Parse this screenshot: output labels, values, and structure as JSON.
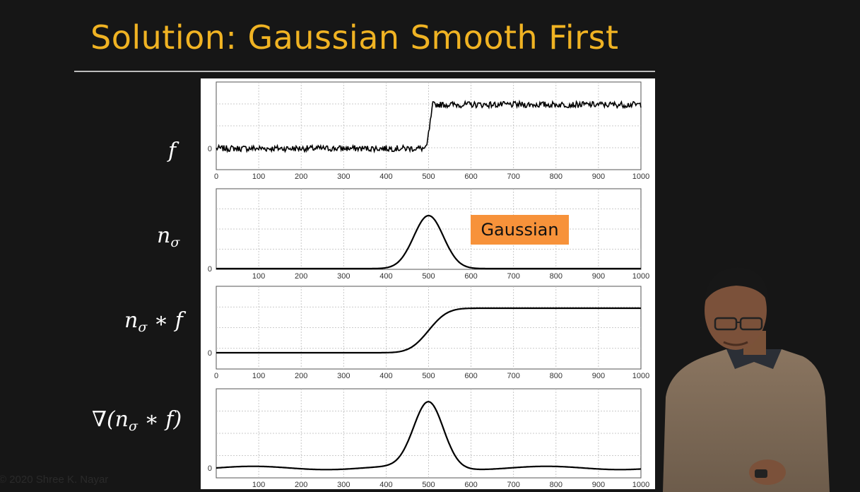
{
  "slide": {
    "title": "Solution: Gaussian Smooth First",
    "copyright": "© 2020 Shree K. Nayar",
    "badge": "Gaussian"
  },
  "labels": {
    "f": "f",
    "n": "n",
    "sigma": "σ",
    "conv_op": " ∗ f",
    "grad_open": "∇(",
    "grad_close": " ∗ f)"
  },
  "colors": {
    "title": "#f0b323",
    "badge": "#f7923a",
    "background": "#161616"
  },
  "chart_data": [
    {
      "type": "line",
      "label": "f",
      "xlim": [
        0,
        1000
      ],
      "x_ticks": [
        0,
        100,
        200,
        300,
        400,
        500,
        600,
        700,
        800,
        900,
        1000
      ],
      "y_ticks": [
        "0"
      ],
      "grid": true,
      "description_points": {
        "x": [
          0,
          495,
          510,
          1000
        ],
        "y": [
          0,
          0,
          1,
          1
        ]
      },
      "noisy": true
    },
    {
      "type": "line",
      "label": "n_sigma",
      "xlim": [
        0,
        1000
      ],
      "x_ticks": [
        100,
        200,
        300,
        400,
        500,
        600,
        700,
        800,
        900,
        1000
      ],
      "y_ticks": [
        "0"
      ],
      "grid": true,
      "gaussian": {
        "center": 500,
        "sigma": 35,
        "peak": 1
      }
    },
    {
      "type": "line",
      "label": "n_sigma * f",
      "xlim": [
        0,
        1000
      ],
      "x_ticks": [
        0,
        100,
        200,
        300,
        400,
        500,
        600,
        700,
        800,
        900,
        1000
      ],
      "y_ticks": [
        "0"
      ],
      "grid": true,
      "step_smooth": {
        "center": 500,
        "sigma": 35,
        "low": 0,
        "high": 1
      }
    },
    {
      "type": "line",
      "label": "grad(n_sigma * f)",
      "xlim": [
        0,
        1000
      ],
      "x_ticks": [
        100,
        200,
        300,
        400,
        500,
        600,
        700,
        800,
        900,
        1000
      ],
      "y_ticks": [
        "0"
      ],
      "grid": true,
      "gaussian": {
        "center": 500,
        "sigma": 35,
        "peak": 1
      }
    }
  ]
}
